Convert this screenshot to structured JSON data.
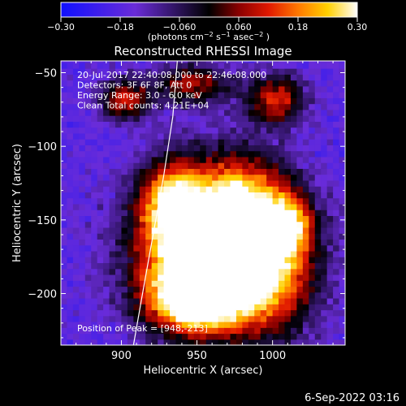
{
  "chart_data": {
    "type": "heatmap",
    "title": "Reconstructed RHESSI Image",
    "xlabel": "Heliocentric X (arcsec)",
    "ylabel": "Heliocentric Y (arcsec)",
    "xlim": [
      860,
      1048
    ],
    "ylim": [
      -235,
      -42
    ],
    "xticks": [
      900,
      950,
      1000
    ],
    "xtick_labels": [
      "900",
      "950",
      "1000"
    ],
    "yticks": [
      -200,
      -150,
      -100,
      -50
    ],
    "ytick_labels": [
      "−200",
      "−150",
      "−100",
      "−50"
    ],
    "colorbar": {
      "range": [
        -0.3,
        0.3
      ],
      "ticks": [
        -0.3,
        -0.18,
        -0.06,
        0.06,
        0.18,
        0.3
      ],
      "tick_labels": [
        "−0.30",
        "−0.18",
        "−0.060",
        "0.060",
        "0.18",
        "0.30"
      ],
      "units_html": "(photons cm<sup>−2</sup> s<sup>−1</sup> asec<sup>−2</sup>)"
    },
    "annotations": [
      "20-Jul-2017 22:40:08.000 to 22:46:08.000",
      "Detectors: 3F 6F 8F, Att 0",
      "Energy Range: 3.0 - 6.0 keV",
      "Clean    Total counts: 4.21E+04"
    ],
    "peak_label": "Position of Peak = [948,-213]",
    "peak": [
      948,
      -213
    ],
    "limb_curve": [
      [
        937,
        -42
      ],
      [
        934,
        -80
      ],
      [
        928,
        -120
      ],
      [
        921,
        -160
      ],
      [
        914,
        -200
      ],
      [
        908,
        -235
      ]
    ],
    "blobs": [
      {
        "x": 945,
        "y": -205,
        "amp": 0.3,
        "sx": 22,
        "sy": 18
      },
      {
        "x": 955,
        "y": -170,
        "amp": 0.24,
        "sx": 35,
        "sy": 30
      },
      {
        "x": 975,
        "y": -140,
        "amp": 0.15,
        "sx": 25,
        "sy": 25
      },
      {
        "x": 990,
        "y": -190,
        "amp": 0.18,
        "sx": 25,
        "sy": 30
      },
      {
        "x": 930,
        "y": -140,
        "amp": 0.14,
        "sx": 14,
        "sy": 22
      },
      {
        "x": 1000,
        "y": -70,
        "amp": 0.12,
        "sx": 14,
        "sy": 12
      },
      {
        "x": 900,
        "y": -70,
        "amp": 0.1,
        "sx": 12,
        "sy": 10
      },
      {
        "x": 945,
        "y": -60,
        "amp": 0.08,
        "sx": 18,
        "sy": 10
      },
      {
        "x": 1010,
        "y": -155,
        "amp": 0.06,
        "sx": 10,
        "sy": 14
      }
    ],
    "background": -0.18,
    "noise": 0.06,
    "grid": false
  },
  "footer": {
    "date": "6-Sep-2022 03:16"
  }
}
